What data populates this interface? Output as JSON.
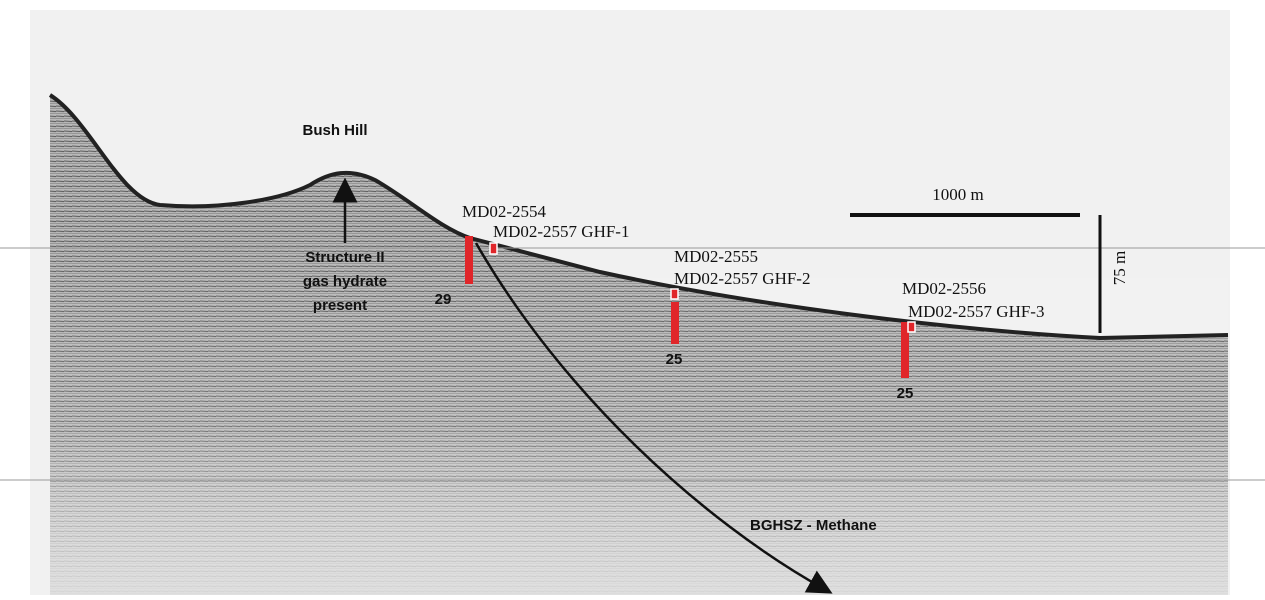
{
  "labels": {
    "feature": "Bush Hill",
    "hydrate_note": [
      "Structure II",
      "gas hydrate",
      "present"
    ],
    "reflector": "BGHSZ - Methane"
  },
  "scale": {
    "horizontal": "1000 m",
    "vertical": "75 m"
  },
  "cores": [
    {
      "name": "MD02-2554",
      "companion": "MD02-2557 GHF-1",
      "depth_label": 29
    },
    {
      "name": "MD02-2555",
      "companion": "MD02-2557 GHF-2",
      "depth_label": 25
    },
    {
      "name": "MD02-2556",
      "companion": "MD02-2557 GHF-3",
      "depth_label": 25
    }
  ]
}
